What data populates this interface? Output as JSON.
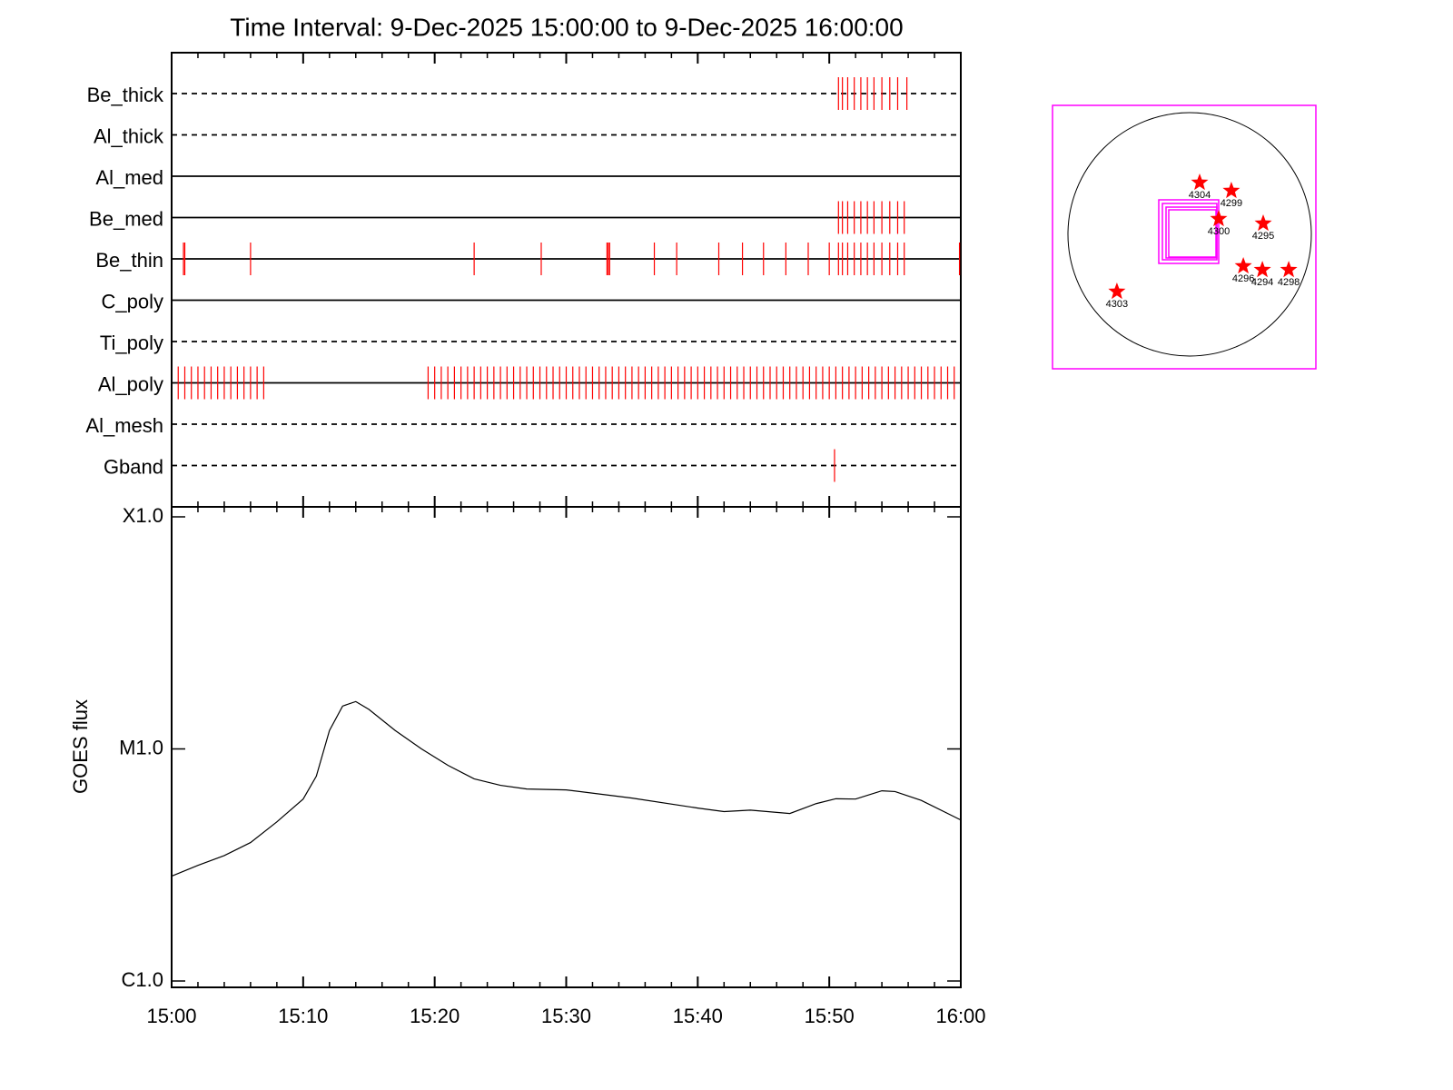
{
  "title": "Time Interval:  9-Dec-2025 15:00:00 to  9-Dec-2025 16:00:00",
  "chart_data": [
    {
      "type": "timeline",
      "color": "#ff0000",
      "xlim": [
        0,
        60
      ],
      "xticks": [
        0,
        10,
        20,
        30,
        40,
        50,
        60
      ],
      "xminorticks": [
        2,
        4,
        6,
        8,
        12,
        14,
        16,
        18,
        22,
        24,
        26,
        28,
        32,
        34,
        36,
        38,
        42,
        44,
        46,
        48,
        52,
        54,
        56,
        58
      ],
      "rows": [
        {
          "name": "Be_thick",
          "line": "dashed",
          "events": [
            50.7,
            51.0,
            51.4,
            51.9,
            52.4,
            52.9,
            53.4,
            54.0,
            54.6,
            55.2,
            55.9
          ]
        },
        {
          "name": "Al_thick",
          "line": "dashed",
          "events": []
        },
        {
          "name": "Al_med",
          "line": "solid",
          "events": []
        },
        {
          "name": "Be_med",
          "line": "solid",
          "events": [
            50.7,
            51.0,
            51.4,
            51.9,
            52.4,
            52.9,
            53.4,
            54.0,
            54.6,
            55.2,
            55.7
          ]
        },
        {
          "name": "Be_thin",
          "line": "solid",
          "events": [
            0.9,
            1.0,
            6.0,
            23.0,
            28.1,
            33.1,
            33.2,
            33.3,
            36.7,
            38.4,
            41.6,
            43.4,
            45.0,
            46.7,
            48.4,
            50.0,
            50.7,
            51.0,
            51.4,
            51.9,
            52.4,
            52.9,
            53.4,
            54.0,
            54.6,
            55.2,
            55.7,
            59.9
          ]
        },
        {
          "name": "C_poly",
          "line": "solid",
          "events": []
        },
        {
          "name": "Ti_poly",
          "line": "dashed",
          "events": []
        },
        {
          "name": "Al_poly",
          "line": "solid",
          "events": [
            0.5,
            1.0,
            1.5,
            2.0,
            2.5,
            3.0,
            3.5,
            4.0,
            4.5,
            5.0,
            5.5,
            6.0,
            6.5,
            7.0,
            19.5,
            20.0,
            20.5,
            21.0,
            21.5,
            22.0,
            22.5,
            23.0,
            23.5,
            24.0,
            24.5,
            25.0,
            25.5,
            26.0,
            26.5,
            27.0,
            27.5,
            28.0,
            28.5,
            29.0,
            29.5,
            30.0,
            30.5,
            31.0,
            31.5,
            32.0,
            32.5,
            33.0,
            33.5,
            34.0,
            34.5,
            35.0,
            35.5,
            36.0,
            36.5,
            37.0,
            37.5,
            38.0,
            38.5,
            39.0,
            39.5,
            40.0,
            40.5,
            41.0,
            41.5,
            42.0,
            42.5,
            43.0,
            43.5,
            44.0,
            44.5,
            45.0,
            45.5,
            46.0,
            46.5,
            47.0,
            47.5,
            48.0,
            48.5,
            49.0,
            49.5,
            50.0,
            50.5,
            51.0,
            51.5,
            52.0,
            52.5,
            53.0,
            53.5,
            54.0,
            54.5,
            55.0,
            55.5,
            56.0,
            56.5,
            57.0,
            57.5,
            58.0,
            58.5,
            59.0,
            59.5
          ]
        },
        {
          "name": "Al_mesh",
          "line": "dashed",
          "events": []
        },
        {
          "name": "Gband",
          "line": "dashed",
          "events": [
            50.4
          ]
        }
      ]
    },
    {
      "type": "line",
      "ylabel": "GOES flux",
      "log_scale": true,
      "color": "#000000",
      "xlim": [
        0,
        60
      ],
      "xticks": [
        {
          "value": 0,
          "label": "15:00"
        },
        {
          "value": 10,
          "label": "15:10"
        },
        {
          "value": 20,
          "label": "15:20"
        },
        {
          "value": 30,
          "label": "15:30"
        },
        {
          "value": 40,
          "label": "15:40"
        },
        {
          "value": 50,
          "label": "15:50"
        },
        {
          "value": 60,
          "label": "16:00"
        }
      ],
      "xminorticks": [
        2,
        4,
        6,
        8,
        12,
        14,
        16,
        18,
        22,
        24,
        26,
        28,
        32,
        34,
        36,
        38,
        42,
        44,
        46,
        48,
        52,
        54,
        56,
        58
      ],
      "ylim": [
        1e-06,
        0.0001
      ],
      "yticks": [
        {
          "value": 1e-06,
          "label": "C1.0"
        },
        {
          "value": 1e-05,
          "label": "M1.0"
        },
        {
          "value": 0.0001,
          "label": "X1.0"
        }
      ],
      "x": [
        0,
        2,
        4,
        6,
        8,
        10,
        11,
        12,
        13,
        14,
        15,
        17,
        19,
        21,
        23,
        25,
        27,
        30,
        35,
        40,
        42,
        44,
        47,
        49,
        50.5,
        52,
        54,
        55,
        57,
        60
      ],
      "values": [
        2.83e-06,
        3.15e-06,
        3.47e-06,
        3.95e-06,
        4.85e-06,
        6.08e-06,
        7.63e-06,
        1.2e-05,
        1.53e-05,
        1.6e-05,
        1.48e-05,
        1.2e-05,
        1e-05,
        8.5e-06,
        7.43e-06,
        6.97e-06,
        6.72e-06,
        6.66e-06,
        6.14e-06,
        5.56e-06,
        5.37e-06,
        5.45e-06,
        5.27e-06,
        5.81e-06,
        6.1e-06,
        6.08e-06,
        6.6e-06,
        6.55e-06,
        6e-06,
        4.94e-06
      ]
    },
    {
      "type": "scatter",
      "color": "#ff0000",
      "xlim": [
        -1100,
        1100
      ],
      "ylim": [
        -1100,
        1100
      ],
      "labels": [
        "4304",
        "4299",
        "4300",
        "4295",
        "4296",
        "4294",
        "4298",
        "4303"
      ],
      "x": [
        129,
        394,
        288,
        660,
        494,
        653,
        873,
        -562
      ],
      "values": [
        455,
        387,
        152,
        114,
        -243,
        -274,
        -274,
        -455
      ]
    }
  ]
}
